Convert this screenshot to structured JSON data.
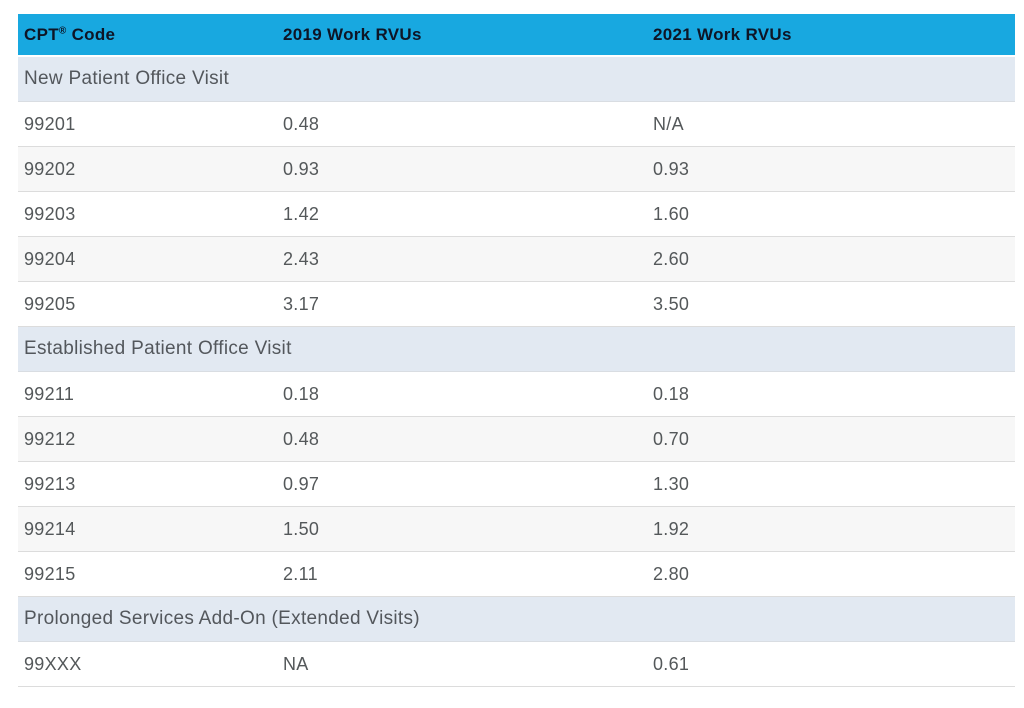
{
  "colors": {
    "accent": "#18a8e0",
    "header_text": "#0e1526",
    "section_background": "#e2e9f2",
    "section_text": "#53575c",
    "alt_row_background": "#f7f7f7",
    "body_text": "#54585a"
  },
  "table": {
    "header": {
      "col1_prefix": "CPT",
      "col1_sup": "®",
      "col1_suffix": "Code",
      "col2": "2019 Work RVUs",
      "col3": "2021 Work RVUs"
    },
    "sections": [
      {
        "title": "New Patient Office Visit",
        "rows": [
          {
            "code": "99201",
            "rvu_2019": "0.48",
            "rvu_2021": "N/A"
          },
          {
            "code": "99202",
            "rvu_2019": "0.93",
            "rvu_2021": "0.93"
          },
          {
            "code": "99203",
            "rvu_2019": "1.42",
            "rvu_2021": "1.60"
          },
          {
            "code": "99204",
            "rvu_2019": "2.43",
            "rvu_2021": "2.60"
          },
          {
            "code": "99205",
            "rvu_2019": "3.17",
            "rvu_2021": "3.50"
          }
        ]
      },
      {
        "title": "Established Patient Office Visit",
        "rows": [
          {
            "code": "99211",
            "rvu_2019": "0.18",
            "rvu_2021": "0.18"
          },
          {
            "code": "99212",
            "rvu_2019": "0.48",
            "rvu_2021": "0.70"
          },
          {
            "code": "99213",
            "rvu_2019": "0.97",
            "rvu_2021": "1.30"
          },
          {
            "code": "99214",
            "rvu_2019": "1.50",
            "rvu_2021": "1.92"
          },
          {
            "code": "99215",
            "rvu_2019": "2.11",
            "rvu_2021": "2.80"
          }
        ]
      },
      {
        "title": "Prolonged Services Add-On (Extended Visits)",
        "rows": [
          {
            "code": "99XXX",
            "rvu_2019": "NA",
            "rvu_2021": "0.61"
          }
        ]
      }
    ]
  }
}
